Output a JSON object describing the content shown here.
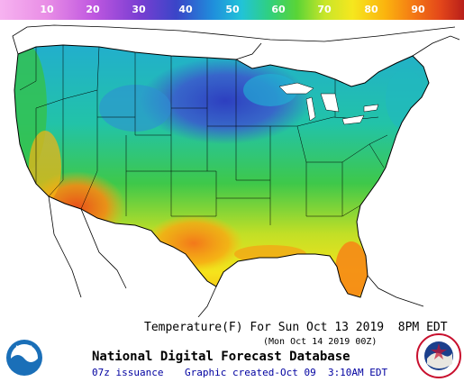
{
  "legend": {
    "labels": [
      "10",
      "20",
      "30",
      "40",
      "50",
      "60",
      "70",
      "80",
      "90"
    ],
    "colors": [
      "#f7b3f0",
      "#d264e6",
      "#8a3fd6",
      "#3a45c8",
      "#1f8fdc",
      "#21c3d8",
      "#2fd080",
      "#5ad436",
      "#c8e62a",
      "#f6e71e",
      "#fbb40e",
      "#f47a14",
      "#e3461a",
      "#b81f1a"
    ]
  },
  "map": {
    "colors": {
      "cold": "#3346c4",
      "cool": "#1e9cdc",
      "mild": "#22c3b8",
      "moderate": "#35c655",
      "warm": "#b6dd28",
      "hot": "#f5e21c",
      "hotter": "#fbac10",
      "hottest": "#f06a18"
    }
  },
  "caption": {
    "main": "Temperature(F) For Sun Oct 13 2019  8PM EDT",
    "sub": "(Mon Oct 14 2019 00Z)",
    "title": "National Digital Forecast Database",
    "issuance": "07z issuance",
    "created": "Graphic created-Oct 09  3:10AM EDT"
  },
  "logos": {
    "noaa": "NOAA",
    "nws": "NATIONAL WEATHER SERVICE"
  }
}
